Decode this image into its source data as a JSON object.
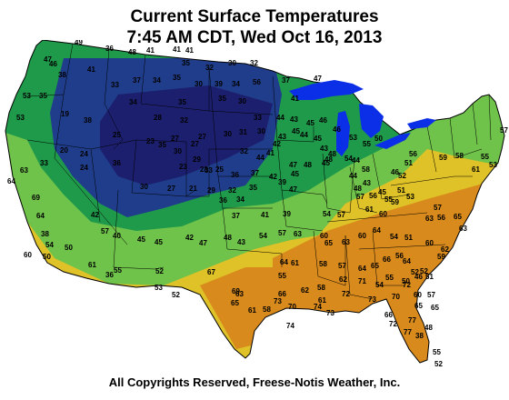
{
  "header": {
    "title": "Current Surface Temperatures",
    "subtitle": "7:45 AM CDT, Wed Oct 16, 2013"
  },
  "footer": {
    "copyright": "All Copyrights Reserved, Freese-Notis Weather, Inc."
  },
  "colors": {
    "very_cold": "#1c1f6e",
    "cold": "#1f3d8a",
    "cool": "#1f9a4a",
    "mild": "#6fc24a",
    "warm": "#dfc227",
    "hot": "#d98a1c",
    "water": "#0b2fe6"
  },
  "readings": [
    {
      "v": "49"
    },
    {
      "v": "36"
    },
    {
      "v": "48"
    },
    {
      "v": "41"
    },
    {
      "v": "41"
    },
    {
      "v": "41"
    },
    {
      "v": "35"
    },
    {
      "v": "47"
    },
    {
      "v": "46"
    },
    {
      "v": "38"
    },
    {
      "v": "41"
    },
    {
      "v": "33"
    },
    {
      "v": "37"
    },
    {
      "v": "34"
    },
    {
      "v": "35"
    },
    {
      "v": "32"
    },
    {
      "v": "30"
    },
    {
      "v": "32"
    },
    {
      "v": "30"
    },
    {
      "v": "39"
    },
    {
      "v": "34"
    },
    {
      "v": "56"
    },
    {
      "v": "37"
    },
    {
      "v": "47"
    },
    {
      "v": "53"
    },
    {
      "v": "35"
    },
    {
      "v": "19"
    },
    {
      "v": "38"
    },
    {
      "v": "34"
    },
    {
      "v": "35"
    },
    {
      "v": "28"
    },
    {
      "v": "32"
    },
    {
      "v": "35"
    },
    {
      "v": "30"
    },
    {
      "v": "41"
    },
    {
      "v": "25"
    },
    {
      "v": "23"
    },
    {
      "v": "27"
    },
    {
      "v": "27"
    },
    {
      "v": "30"
    },
    {
      "v": "31"
    },
    {
      "v": "30"
    },
    {
      "v": "32"
    },
    {
      "v": "33"
    },
    {
      "v": "44"
    },
    {
      "v": "43"
    },
    {
      "v": "45"
    },
    {
      "v": "46"
    },
    {
      "v": "46"
    },
    {
      "v": "45"
    },
    {
      "v": "43"
    },
    {
      "v": "41"
    },
    {
      "v": "20"
    },
    {
      "v": "24"
    },
    {
      "v": "30"
    },
    {
      "v": "35"
    },
    {
      "v": "29"
    },
    {
      "v": "27"
    },
    {
      "v": "33"
    },
    {
      "v": "42"
    },
    {
      "v": "44"
    },
    {
      "v": "45"
    },
    {
      "v": "43"
    },
    {
      "v": "33"
    },
    {
      "v": "24"
    },
    {
      "v": "36"
    },
    {
      "v": "23"
    },
    {
      "v": "28"
    },
    {
      "v": "25"
    },
    {
      "v": "36"
    },
    {
      "v": "37"
    },
    {
      "v": "44"
    },
    {
      "v": "47"
    },
    {
      "v": "48"
    },
    {
      "v": "45"
    },
    {
      "v": "48"
    },
    {
      "v": "53"
    },
    {
      "v": "55"
    },
    {
      "v": "58"
    },
    {
      "v": "50"
    },
    {
      "v": "44"
    },
    {
      "v": "54"
    },
    {
      "v": "30"
    },
    {
      "v": "27"
    },
    {
      "v": "21"
    },
    {
      "v": "29"
    },
    {
      "v": "32"
    },
    {
      "v": "35"
    },
    {
      "v": "42"
    },
    {
      "v": "39"
    },
    {
      "v": "47"
    },
    {
      "v": "45"
    },
    {
      "v": "48"
    },
    {
      "v": "44"
    },
    {
      "v": "48"
    },
    {
      "v": "43"
    },
    {
      "v": "45"
    },
    {
      "v": "46"
    },
    {
      "v": "52"
    },
    {
      "v": "51"
    },
    {
      "v": "56"
    },
    {
      "v": "59"
    },
    {
      "v": "58"
    },
    {
      "v": "61"
    },
    {
      "v": "55"
    },
    {
      "v": "53"
    },
    {
      "v": "57"
    },
    {
      "v": "36"
    },
    {
      "v": "34"
    },
    {
      "v": "37"
    },
    {
      "v": "41"
    },
    {
      "v": "39"
    },
    {
      "v": "54"
    },
    {
      "v": "57"
    },
    {
      "v": "57"
    },
    {
      "v": "56"
    },
    {
      "v": "61"
    },
    {
      "v": "60"
    },
    {
      "v": "55"
    },
    {
      "v": "59"
    },
    {
      "v": "51"
    },
    {
      "v": "53"
    },
    {
      "v": "57"
    },
    {
      "v": "63"
    },
    {
      "v": "56"
    },
    {
      "v": "40"
    },
    {
      "v": "45"
    },
    {
      "v": "45"
    },
    {
      "v": "42"
    },
    {
      "v": "47"
    },
    {
      "v": "48"
    },
    {
      "v": "43"
    },
    {
      "v": "54"
    },
    {
      "v": "57"
    },
    {
      "v": "63"
    },
    {
      "v": "60"
    },
    {
      "v": "65"
    },
    {
      "v": "63"
    },
    {
      "v": "60"
    },
    {
      "v": "64"
    },
    {
      "v": "54"
    },
    {
      "v": "51"
    },
    {
      "v": "60"
    },
    {
      "v": "62"
    },
    {
      "v": "59"
    },
    {
      "v": "63"
    },
    {
      "v": "52"
    },
    {
      "v": "64"
    },
    {
      "v": "52"
    },
    {
      "v": "51"
    },
    {
      "v": "57"
    },
    {
      "v": "46"
    },
    {
      "v": "50"
    },
    {
      "v": "60"
    },
    {
      "v": "65"
    },
    {
      "v": "65"
    },
    {
      "v": "65"
    },
    {
      "v": "64"
    },
    {
      "v": "61"
    },
    {
      "v": "58"
    },
    {
      "v": "57"
    },
    {
      "v": "64"
    },
    {
      "v": "65"
    },
    {
      "v": "66"
    },
    {
      "v": "56"
    },
    {
      "v": "55"
    },
    {
      "v": "58"
    },
    {
      "v": "61"
    },
    {
      "v": "62"
    },
    {
      "v": "71"
    },
    {
      "v": "55"
    },
    {
      "v": "54"
    },
    {
      "v": "72"
    },
    {
      "v": "69"
    },
    {
      "v": "65"
    },
    {
      "v": "63"
    },
    {
      "v": "66"
    },
    {
      "v": "62"
    },
    {
      "v": "70"
    },
    {
      "v": "58"
    },
    {
      "v": "61"
    },
    {
      "v": "73"
    },
    {
      "v": "72"
    },
    {
      "v": "73"
    },
    {
      "v": "70"
    },
    {
      "v": "66"
    },
    {
      "v": "72"
    },
    {
      "v": "74"
    },
    {
      "v": "73"
    },
    {
      "v": "74"
    },
    {
      "v": "77"
    },
    {
      "v": "77"
    },
    {
      "v": "38"
    },
    {
      "v": "48"
    },
    {
      "v": "55"
    },
    {
      "v": "52"
    },
    {
      "v": "53"
    },
    {
      "v": "63"
    },
    {
      "v": "64"
    },
    {
      "v": "69"
    },
    {
      "v": "64"
    },
    {
      "v": "38"
    },
    {
      "v": "54"
    },
    {
      "v": "50"
    },
    {
      "v": "50"
    },
    {
      "v": "60"
    },
    {
      "v": "61"
    },
    {
      "v": "42"
    },
    {
      "v": "57"
    },
    {
      "v": "55"
    },
    {
      "v": "52"
    },
    {
      "v": "36"
    },
    {
      "v": "52"
    },
    {
      "v": "53"
    },
    {
      "v": "67"
    }
  ]
}
